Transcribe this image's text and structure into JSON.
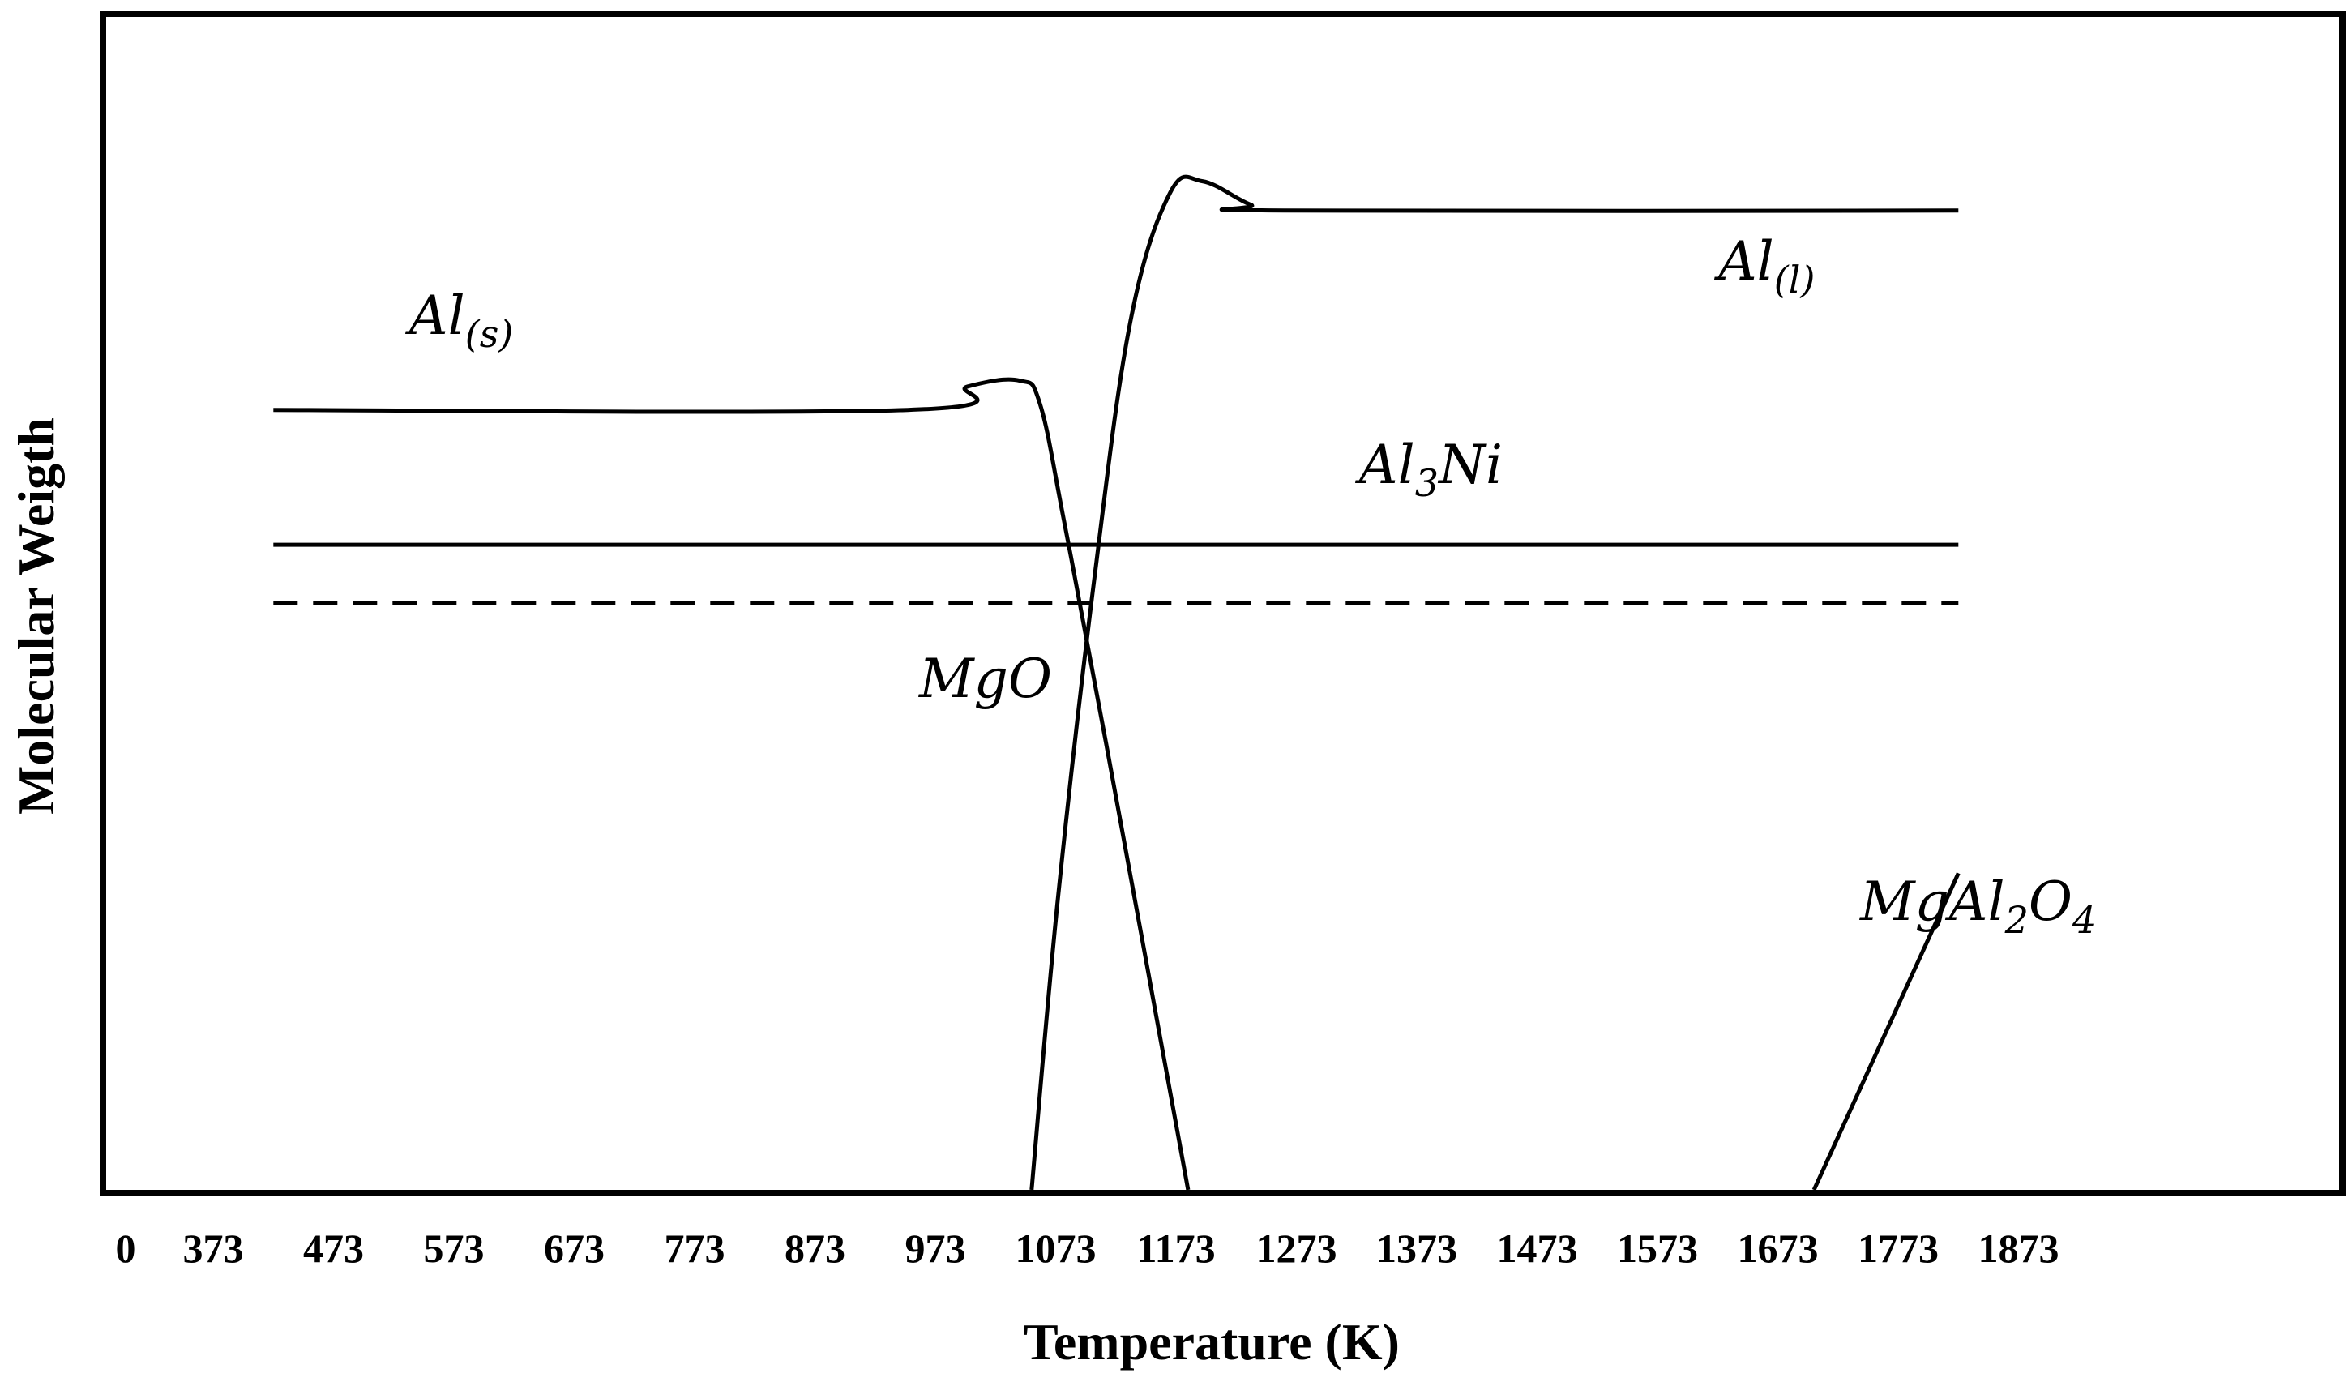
{
  "chart_data": {
    "type": "line",
    "title": "",
    "xlabel": "Temperature (K)",
    "ylabel": "Molecular Weigth",
    "x_ticks": [
      "0",
      "373",
      "473",
      "573",
      "673",
      "773",
      "873",
      "973",
      "1073",
      "1173",
      "1273",
      "1373",
      "1473",
      "1573",
      "1673",
      "1773",
      "1873"
    ],
    "ylim": [
      0,
      100
    ],
    "y_ticks_shown": false,
    "grid": false,
    "legend": "none (series labelled directly on the plot)",
    "series": [
      {
        "name": "Al(s)",
        "label_parts": [
          "Al",
          "(s)"
        ],
        "style": "solid",
        "points": [
          [
            423,
            66.5
          ],
          [
            950,
            66.5
          ],
          [
            1000,
            68.5
          ],
          [
            1043,
            69
          ],
          [
            1060,
            67
          ],
          [
            1080,
            57
          ],
          [
            1115,
            38
          ],
          [
            1183,
            0
          ]
        ]
      },
      {
        "name": "Al(l)",
        "label_parts": [
          "Al",
          "(l)"
        ],
        "style": "solid",
        "points": [
          [
            1053,
            0
          ],
          [
            1075,
            25
          ],
          [
            1105,
            52
          ],
          [
            1135,
            74
          ],
          [
            1168,
            85
          ],
          [
            1195,
            86
          ],
          [
            1235,
            84
          ],
          [
            1263,
            83.5
          ],
          [
            1823,
            83.5
          ]
        ]
      },
      {
        "name": "Al3Ni",
        "label_parts": [
          "Al",
          "3",
          "Ni"
        ],
        "style": "solid",
        "points": [
          [
            423,
            55
          ],
          [
            1823,
            55
          ]
        ]
      },
      {
        "name": "MgO",
        "label_parts": [
          "MgO"
        ],
        "style": "dashed",
        "points": [
          [
            423,
            50
          ],
          [
            1823,
            50
          ]
        ]
      },
      {
        "name": "MgAl2O4",
        "label_parts": [
          "MgAl",
          "2",
          "O",
          "4"
        ],
        "style": "solid",
        "points": [
          [
            1703,
            0
          ],
          [
            1823,
            27
          ]
        ]
      }
    ]
  }
}
